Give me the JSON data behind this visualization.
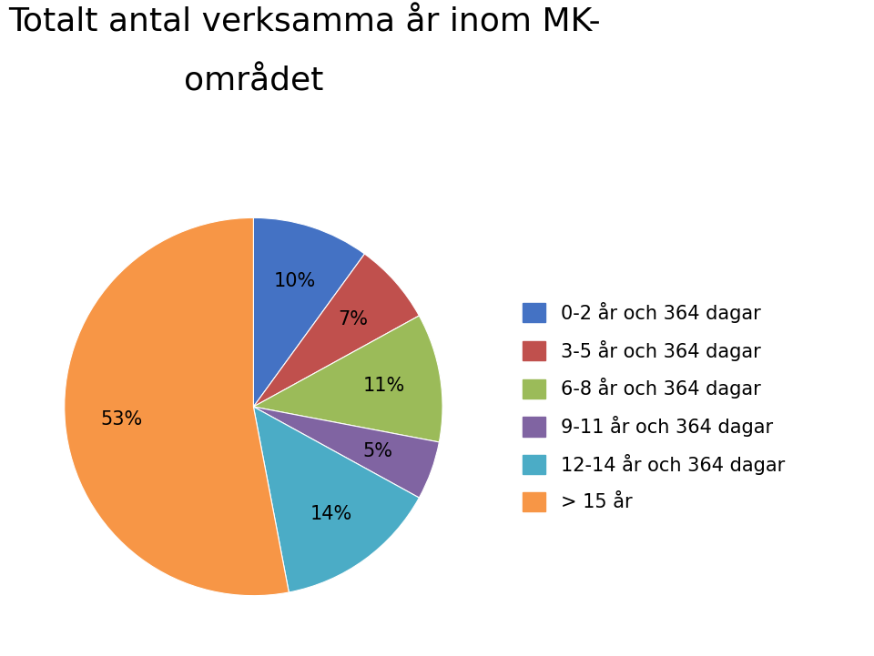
{
  "title_line1": "Totalt antal verksamma år inom MK-",
  "title_line2": "området",
  "labels": [
    "0-2 år och 364 dagar",
    "3-5 år och 364 dagar",
    "6-8 år och 364 dagar",
    "9-11 år och 364 dagar",
    "12-14 år och 364 dagar",
    "> 15 år"
  ],
  "values": [
    10,
    7,
    11,
    5,
    14,
    53
  ],
  "colors": [
    "#4472C4",
    "#C0504D",
    "#9BBB59",
    "#8064A2",
    "#4BACC6",
    "#F79646"
  ],
  "startangle": 90,
  "background_color": "#FFFFFF",
  "title_fontsize": 26,
  "legend_fontsize": 15,
  "pct_fontsize": 15
}
